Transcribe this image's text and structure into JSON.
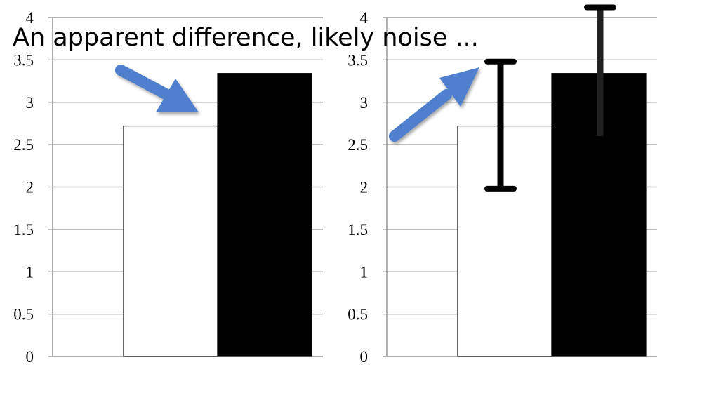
{
  "annotation": "An apparent difference, likely noise ...",
  "colors": {
    "grid": "#808080",
    "bar_outline": "#000000",
    "arrow": "#4f7fcd",
    "error_bar": "#000000"
  },
  "chart_data": [
    {
      "type": "bar",
      "ylim": [
        0,
        4
      ],
      "yticks": [
        0,
        0.5,
        1,
        1.5,
        2,
        2.5,
        3,
        3.5,
        4
      ],
      "ytick_labels": [
        "0",
        "0.5",
        "1",
        "1.5",
        "2",
        "2.5",
        "3",
        "3.5",
        "4"
      ],
      "grid": true,
      "bars": [
        {
          "value": 2.72,
          "fill": "#ffffff"
        },
        {
          "value": 3.34,
          "fill": "#000000"
        }
      ],
      "error_bars": []
    },
    {
      "type": "bar",
      "ylim": [
        0,
        4
      ],
      "yticks": [
        0,
        0.5,
        1,
        1.5,
        2,
        2.5,
        3,
        3.5,
        4
      ],
      "ytick_labels": [
        "0",
        "0.5",
        "1",
        "1.5",
        "2",
        "2.5",
        "3",
        "3.5",
        "4"
      ],
      "grid": true,
      "bars": [
        {
          "value": 2.72,
          "fill": "#ffffff"
        },
        {
          "value": 3.34,
          "fill": "#000000"
        }
      ],
      "error_bars": [
        {
          "low": 1.98,
          "high": 3.48,
          "color": "#000000"
        },
        {
          "low": 2.6,
          "high": 4.12,
          "color": "#000000"
        }
      ]
    }
  ]
}
